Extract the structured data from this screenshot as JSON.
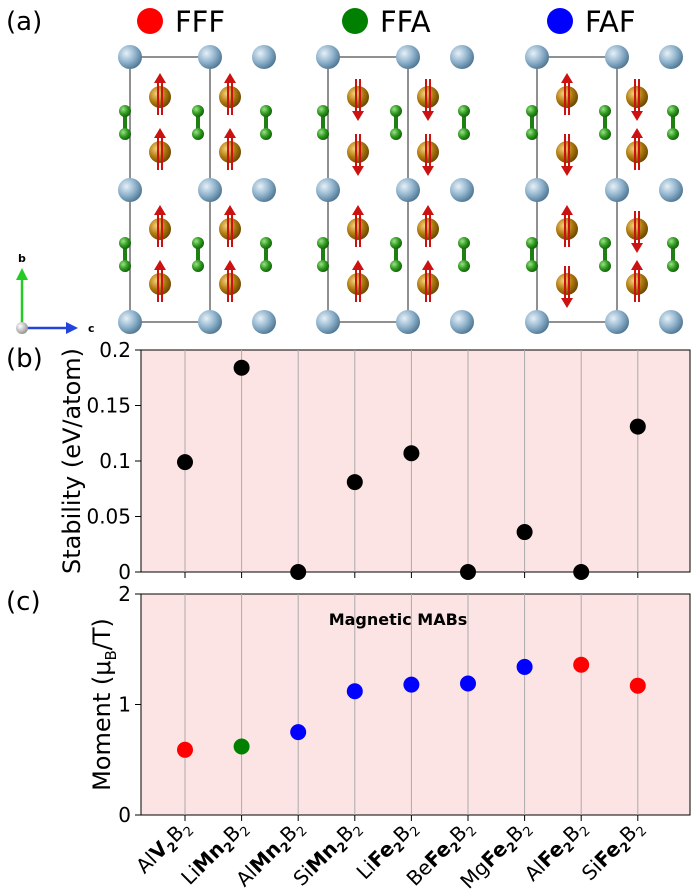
{
  "panel_a": {
    "label": "(a)",
    "legend": [
      {
        "name": "FFF",
        "color": "#ff0000"
      },
      {
        "name": "FFA",
        "color": "#008000"
      },
      {
        "name": "FAF",
        "color": "#0000ff"
      }
    ],
    "structures": [
      {
        "config": "FFF",
        "spins": [
          "up",
          "up",
          "up",
          "up",
          "up",
          "up",
          "up",
          "up"
        ]
      },
      {
        "config": "FFA",
        "spins": [
          "down",
          "down",
          "down",
          "down",
          "up",
          "up",
          "up",
          "up"
        ]
      },
      {
        "config": "FAF",
        "spins": [
          "up",
          "down",
          "down",
          "up",
          "up",
          "down",
          "down",
          "up"
        ]
      }
    ],
    "axes": {
      "b": "b",
      "c": "c"
    }
  },
  "chart_data": [
    {
      "panel_label": "(b)",
      "type": "scatter",
      "categories": [
        "AlV2B2",
        "LiMn2B2",
        "AlMn2B2",
        "SiMn2B2",
        "LiFe2B2",
        "BeFe2B2",
        "MgFe2B2",
        "AlFe2B2",
        "SiFe2B2"
      ],
      "values": [
        0.099,
        0.184,
        0.0,
        0.081,
        0.107,
        0.0,
        0.036,
        0.0,
        0.131
      ],
      "ylabel": "Stability (eV/atom)",
      "ylim": [
        0,
        0.2
      ],
      "yticks": [
        0,
        0.05,
        0.1,
        0.15,
        0.2
      ],
      "ytick_labels": [
        "0",
        "0.05",
        "0.1",
        "0.15",
        "0.2"
      ],
      "point_color": "#000000",
      "background": "#fde4e4",
      "grid": "vertical"
    },
    {
      "panel_label": "(c)",
      "type": "scatter",
      "categories": [
        "AlV2B2",
        "LiMn2B2",
        "AlMn2B2",
        "SiMn2B2",
        "LiFe2B2",
        "BeFe2B2",
        "MgFe2B2",
        "AlFe2B2",
        "SiFe2B2"
      ],
      "values": [
        0.59,
        0.62,
        0.75,
        1.12,
        1.18,
        1.19,
        1.34,
        1.36,
        1.17
      ],
      "configs": [
        "FFF",
        "FFA",
        "FAF",
        "FAF",
        "FAF",
        "FAF",
        "FAF",
        "FFF",
        "FFF"
      ],
      "ylabel_main": "Moment (μ",
      "ylabel_sub": "B",
      "ylabel_end": "/T)",
      "ylim": [
        0,
        2
      ],
      "yticks": [
        0,
        1,
        2
      ],
      "ytick_labels": [
        "0",
        "1",
        "2"
      ],
      "annotation": "Magnetic MABs",
      "background": "#fde4e4",
      "grid": "vertical"
    }
  ],
  "x_tick_labels": [
    {
      "pre": "Al",
      "bold": "V",
      "boldsub": "2",
      "post": "B",
      "postsub": "2"
    },
    {
      "pre": "Li",
      "bold": "Mn",
      "boldsub": "2",
      "post": "B",
      "postsub": "2"
    },
    {
      "pre": "Al",
      "bold": "Mn",
      "boldsub": "2",
      "post": "B",
      "postsub": "2"
    },
    {
      "pre": "Si",
      "bold": "Mn",
      "boldsub": "2",
      "post": "B",
      "postsub": "2"
    },
    {
      "pre": "Li",
      "bold": "Fe",
      "boldsub": "2",
      "post": "B",
      "postsub": "2"
    },
    {
      "pre": "Be",
      "bold": "Fe",
      "boldsub": "2",
      "post": "B",
      "postsub": "2"
    },
    {
      "pre": "Mg",
      "bold": "Fe",
      "boldsub": "2",
      "post": "B",
      "postsub": "2"
    },
    {
      "pre": "Al",
      "bold": "Fe",
      "boldsub": "2",
      "post": "B",
      "postsub": "2"
    },
    {
      "pre": "Si",
      "bold": "Fe",
      "boldsub": "2",
      "post": "B",
      "postsub": "2"
    }
  ],
  "config_colors": {
    "FFF": "#ff0000",
    "FFA": "#008000",
    "FAF": "#0000ff"
  }
}
